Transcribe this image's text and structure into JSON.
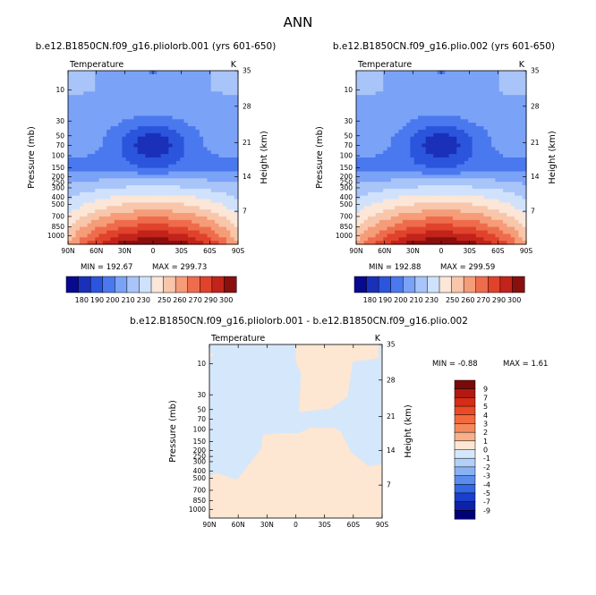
{
  "page": {
    "season": "ANN",
    "bg": "#ffffff"
  },
  "chart_data": [
    {
      "type": "heatmap",
      "title": "b.e12.B1850CN.f09_g16.pliolorb.001 (yrs 601-650)",
      "variable": "Temperature",
      "units": "K",
      "xlabel": "",
      "ylabel": "Pressure (mb)",
      "ylabel_right": "Height (km)",
      "x_ticks": [
        "90N",
        "60N",
        "30N",
        "0",
        "30S",
        "60S",
        "90S"
      ],
      "y_ticks": [
        "10",
        "30",
        "50",
        "70",
        "100",
        "150",
        "200",
        "250",
        "300",
        "400",
        "500",
        "700",
        "850",
        "1000"
      ],
      "y_right_ticks": [
        "35",
        "28",
        "21",
        "14",
        "7"
      ],
      "min_label": "MIN = 192.67",
      "max_label": "MAX = 299.73",
      "log_pressure_axis": true,
      "colorbar_labels": [
        "180",
        "190",
        "200",
        "210",
        "230",
        "250",
        "260",
        "270",
        "290",
        "300"
      ]
    },
    {
      "type": "heatmap",
      "title": "b.e12.B1850CN.f09_g16.plio.002 (yrs 601-650)",
      "variable": "Temperature",
      "units": "K",
      "xlabel": "",
      "ylabel": "Pressure (mb)",
      "ylabel_right": "Height (km)",
      "x_ticks": [
        "90N",
        "60N",
        "30N",
        "0",
        "30S",
        "60S",
        "90S"
      ],
      "y_ticks": [
        "10",
        "30",
        "50",
        "70",
        "100",
        "150",
        "200",
        "250",
        "300",
        "400",
        "500",
        "700",
        "850",
        "1000"
      ],
      "y_right_ticks": [
        "35",
        "28",
        "21",
        "14",
        "7"
      ],
      "min_label": "MIN = 192.88",
      "max_label": "MAX = 299.59",
      "log_pressure_axis": true,
      "colorbar_labels": [
        "180",
        "190",
        "200",
        "210",
        "230",
        "250",
        "260",
        "270",
        "290",
        "300"
      ]
    },
    {
      "type": "heatmap",
      "title": "b.e12.B1850CN.f09_g16.pliolorb.001 - b.e12.B1850CN.f09_g16.plio.002",
      "variable": "Temperature",
      "units": "K",
      "xlabel": "",
      "ylabel": "Pressure (mb)",
      "ylabel_right": "Height (km)",
      "x_ticks": [
        "90N",
        "60N",
        "30N",
        "0",
        "30S",
        "60S",
        "90S"
      ],
      "y_ticks": [
        "10",
        "30",
        "50",
        "70",
        "100",
        "150",
        "200",
        "250",
        "300",
        "400",
        "500",
        "700",
        "850",
        "1000"
      ],
      "y_right_ticks": [
        "35",
        "28",
        "21",
        "14",
        "7"
      ],
      "min_label": "MIN = -0.88",
      "max_label": "MAX = 1.61",
      "log_pressure_axis": true,
      "colorbar_labels": [
        "9",
        "7",
        "5",
        "4",
        "3",
        "2",
        "1",
        "0",
        "-1",
        "-2",
        "-3",
        "-4",
        "-5",
        "-7",
        "-9"
      ]
    }
  ],
  "colors": {
    "abs_scale": [
      "#080891",
      "#1a30b8",
      "#2b55dc",
      "#4a78ee",
      "#7aa2f7",
      "#a8c4f8",
      "#d0e2fb",
      "#fbe6d8",
      "#f8c6aa",
      "#f59c78",
      "#ee6c4c",
      "#e0422c",
      "#c2231a",
      "#8a0f0f"
    ],
    "diff_scale": [
      "#7a0a0a",
      "#b01a12",
      "#d42d18",
      "#ea4a26",
      "#f26a3e",
      "#f48a5c",
      "#f7b08a",
      "#fde6d2",
      "#d5e7fb",
      "#b3d0f8",
      "#88b2f3",
      "#5a8cee",
      "#3467e3",
      "#1b3fcb",
      "#0d22a6",
      "#000077"
    ],
    "diff_pos": "#fde6d2",
    "diff_neg": "#d5e7fb"
  }
}
